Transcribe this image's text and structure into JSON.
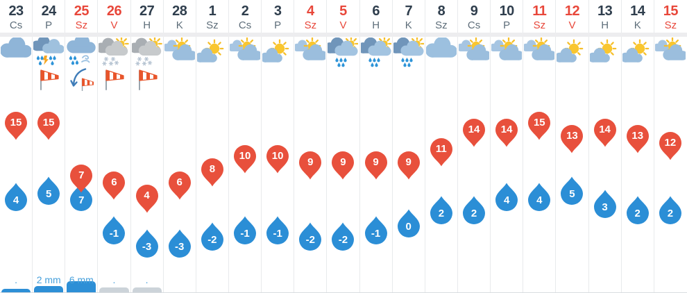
{
  "colors": {
    "holiday_red": "#e8473a",
    "day_number": "#2f3e4d",
    "weekday_gray": "#5d6d79",
    "precip_text": "#47a0db",
    "bar_blue": "#2d8fd6",
    "bar_gray": "#ccd3d9",
    "max_pin_red": "#e8503c",
    "min_drop_blue": "#2b8ed6"
  },
  "days": [
    {
      "date": "23",
      "dow": "Cs",
      "holiday": false,
      "icon": "overcast",
      "wind": null,
      "max": 15,
      "min": 4,
      "precip_label": ".",
      "bar": {
        "h": 6,
        "color": "blue"
      }
    },
    {
      "date": "24",
      "dow": "P",
      "holiday": false,
      "icon": "thunderstorm",
      "wind": "windsock",
      "max": 15,
      "min": 5,
      "precip_label": "2 mm",
      "bar": {
        "h": 10,
        "color": "blue"
      }
    },
    {
      "date": "25",
      "dow": "Sz",
      "holiday": true,
      "icon": "rain-sleet-wind",
      "wind": "windsock-gust",
      "max": 7,
      "min": 7,
      "precip_label": "6 mm",
      "bar": {
        "h": 17,
        "color": "blue"
      }
    },
    {
      "date": "26",
      "dow": "V",
      "holiday": true,
      "icon": "snow-showers-sun",
      "wind": "windsock",
      "max": 6,
      "min": -1,
      "precip_label": ".",
      "bar": {
        "h": 8,
        "color": "gray"
      }
    },
    {
      "date": "27",
      "dow": "H",
      "holiday": false,
      "icon": "snow-showers-sun",
      "wind": "windsock",
      "max": 4,
      "min": -3,
      "precip_label": ".",
      "bar": {
        "h": 8,
        "color": "gray"
      }
    },
    {
      "date": "28",
      "dow": "K",
      "holiday": false,
      "icon": "partly-cloudy",
      "wind": null,
      "max": 6,
      "min": -3,
      "precip_label": "",
      "bar": null
    },
    {
      "date": "1",
      "dow": "Sz",
      "holiday": false,
      "icon": "mostly-sunny",
      "wind": null,
      "max": 8,
      "min": -2,
      "precip_label": "",
      "bar": null
    },
    {
      "date": "2",
      "dow": "Cs",
      "holiday": false,
      "icon": "partly-cloudy",
      "wind": null,
      "max": 10,
      "min": -1,
      "precip_label": "",
      "bar": null
    },
    {
      "date": "3",
      "dow": "P",
      "holiday": false,
      "icon": "mostly-sunny",
      "wind": null,
      "max": 10,
      "min": -1,
      "precip_label": "",
      "bar": null
    },
    {
      "date": "4",
      "dow": "Sz",
      "holiday": true,
      "icon": "partly-cloudy",
      "wind": null,
      "max": 9,
      "min": -2,
      "precip_label": "",
      "bar": null
    },
    {
      "date": "5",
      "dow": "V",
      "holiday": true,
      "icon": "sun-showers",
      "wind": null,
      "max": 9,
      "min": -2,
      "precip_label": "",
      "bar": null
    },
    {
      "date": "6",
      "dow": "H",
      "holiday": false,
      "icon": "sun-showers",
      "wind": null,
      "max": 9,
      "min": -1,
      "precip_label": "",
      "bar": null
    },
    {
      "date": "7",
      "dow": "K",
      "holiday": false,
      "icon": "sun-showers",
      "wind": null,
      "max": 9,
      "min": 0,
      "precip_label": "",
      "bar": null
    },
    {
      "date": "8",
      "dow": "Sz",
      "holiday": false,
      "icon": "cloudy",
      "wind": null,
      "max": 11,
      "min": 2,
      "precip_label": "",
      "bar": null
    },
    {
      "date": "9",
      "dow": "Cs",
      "holiday": false,
      "icon": "partly-cloudy",
      "wind": null,
      "max": 14,
      "min": 2,
      "precip_label": "",
      "bar": null
    },
    {
      "date": "10",
      "dow": "P",
      "holiday": false,
      "icon": "partly-cloudy",
      "wind": null,
      "max": 14,
      "min": 4,
      "precip_label": "",
      "bar": null
    },
    {
      "date": "11",
      "dow": "Sz",
      "holiday": true,
      "icon": "partly-cloudy",
      "wind": null,
      "max": 15,
      "min": 4,
      "precip_label": "",
      "bar": null
    },
    {
      "date": "12",
      "dow": "V",
      "holiday": true,
      "icon": "mostly-sunny",
      "wind": null,
      "max": 13,
      "min": 5,
      "precip_label": "",
      "bar": null
    },
    {
      "date": "13",
      "dow": "H",
      "holiday": false,
      "icon": "mostly-sunny",
      "wind": null,
      "max": 14,
      "min": 3,
      "precip_label": "",
      "bar": null
    },
    {
      "date": "14",
      "dow": "K",
      "holiday": false,
      "icon": "mostly-sunny",
      "wind": null,
      "max": 13,
      "min": 2,
      "precip_label": "",
      "bar": null
    },
    {
      "date": "15",
      "dow": "Sz",
      "holiday": true,
      "icon": "partly-cloudy",
      "wind": null,
      "max": 12,
      "min": 2,
      "precip_label": "",
      "bar": null
    }
  ]
}
